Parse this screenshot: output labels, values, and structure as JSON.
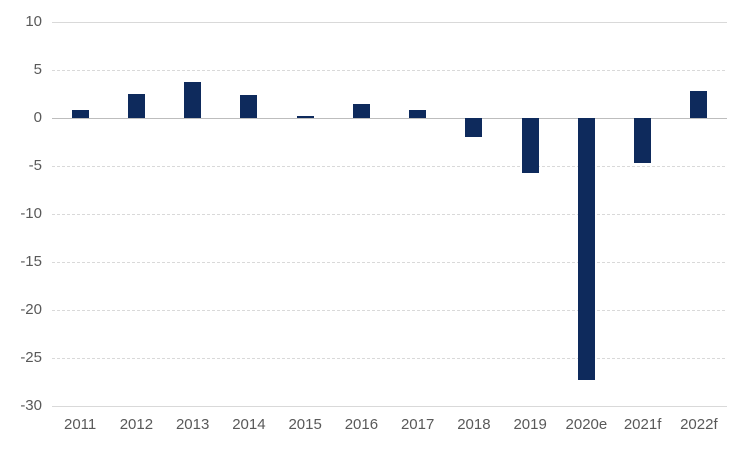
{
  "chart_data": {
    "type": "bar",
    "title": "",
    "xlabel": "",
    "ylabel": "",
    "categories": [
      "2011",
      "2012",
      "2013",
      "2014",
      "2015",
      "2016",
      "2017",
      "2018",
      "2019",
      "2020e",
      "2021f",
      "2022f"
    ],
    "values": [
      0.8,
      2.5,
      3.8,
      2.4,
      0.2,
      1.5,
      0.8,
      -2.0,
      -5.7,
      -27.3,
      -4.7,
      2.8
    ],
    "ylim": [
      -30,
      10
    ],
    "yticks": [
      10,
      5,
      0,
      -5,
      -10,
      -15,
      -20,
      -25,
      -30
    ],
    "grid": true,
    "legend": false,
    "colors": {
      "bar": "#0e2a5c",
      "gridline": "#d9d9d9",
      "zero_line": "#bdbdbd",
      "axis_labels": "#595959",
      "background": "#ffffff"
    }
  }
}
